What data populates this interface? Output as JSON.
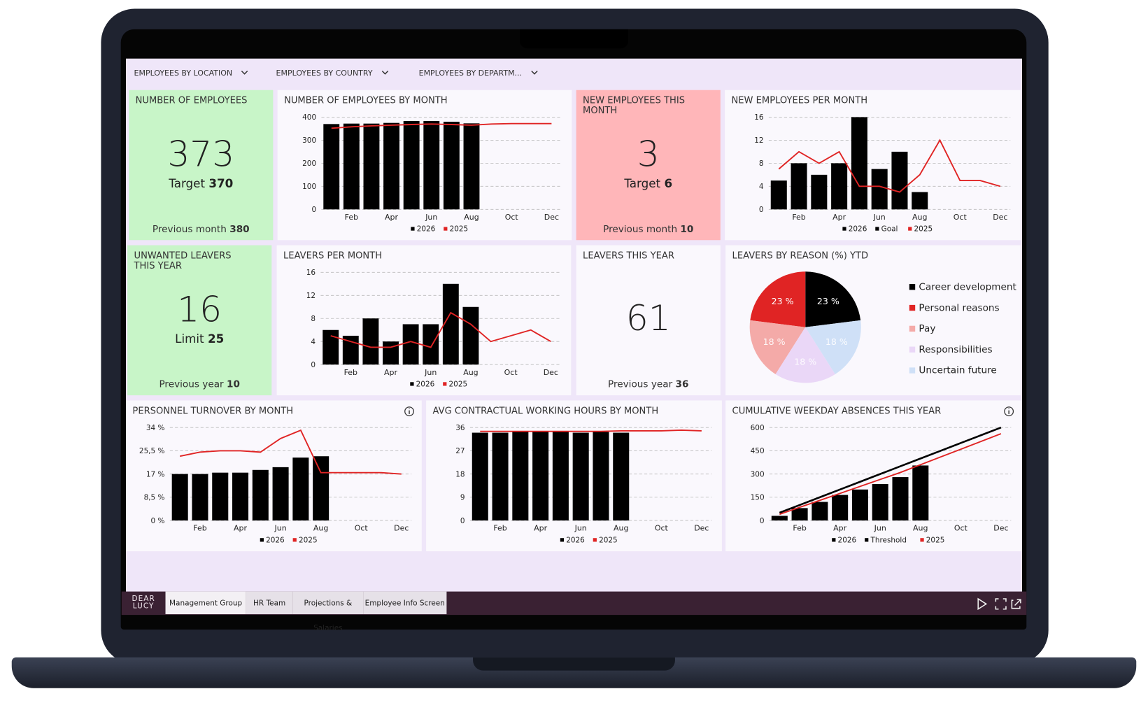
{
  "filters": [
    "EMPLOYEES BY LOCATION",
    "EMPLOYEES BY COUNTRY",
    "EMPLOYEES BY DEPARTM..."
  ],
  "tiles": [
    {
      "title": "NUMBER OF EMPLOYEES",
      "value": 373,
      "target_label": "Target",
      "target": 370,
      "footer_label": "Previous month",
      "footer": 380
    },
    {
      "title": "NEW EMPLOYEES THIS MONTH",
      "value": 3,
      "target_label": "Target",
      "target": 6,
      "footer_label": "Previous month",
      "footer": 10
    },
    {
      "title": "UNWANTED LEAVERS THIS YEAR",
      "value": 16,
      "target_label": "Limit",
      "target": 25,
      "footer_label": "Previous year",
      "footer": 10
    },
    {
      "title": "LEAVERS THIS YEAR",
      "value": 61,
      "footer_label": "Previous year",
      "footer": 36
    }
  ],
  "chart_data": [
    {
      "type": "bar",
      "title": "NUMBER OF EMPLOYEES BY MONTH",
      "categories": [
        null,
        "Feb",
        null,
        "Apr",
        null,
        "Jun",
        null,
        "Aug",
        null,
        "Oct",
        null,
        "Dec"
      ],
      "ylim": [
        0,
        400
      ],
      "yticks": [
        0,
        100,
        200,
        300,
        400
      ],
      "grid": true,
      "series": [
        {
          "name": "2026",
          "type": "bar",
          "color": "#000000",
          "values": [
            370,
            372,
            372,
            375,
            383,
            383,
            380,
            373,
            null,
            null,
            null,
            null
          ]
        },
        {
          "name": "2025",
          "type": "line",
          "color": "#e02424",
          "values": [
            352,
            358,
            362,
            365,
            368,
            370,
            368,
            365,
            370,
            372,
            372,
            372
          ]
        }
      ]
    },
    {
      "type": "bar",
      "title": "NEW EMPLOYEES PER MONTH",
      "categories": [
        null,
        "Feb",
        null,
        "Apr",
        null,
        "Jun",
        null,
        "Aug",
        null,
        "Oct",
        null,
        "Dec"
      ],
      "ylim": [
        0,
        16
      ],
      "yticks": [
        0,
        4,
        8,
        12,
        16
      ],
      "grid": true,
      "series": [
        {
          "name": "2026",
          "type": "bar",
          "color": "#000000",
          "values": [
            5,
            8,
            6,
            8,
            16,
            7,
            10,
            3,
            null,
            null,
            null,
            null
          ]
        },
        {
          "name": "Goal",
          "type": "line",
          "color": "#000000",
          "values": [
            null,
            null,
            null,
            null,
            null,
            null,
            null,
            null,
            null,
            null,
            null,
            null
          ]
        },
        {
          "name": "2025",
          "type": "line",
          "color": "#e02424",
          "values": [
            7,
            10,
            8,
            10,
            4,
            4,
            3,
            6,
            12,
            5,
            5,
            4
          ]
        }
      ]
    },
    {
      "type": "bar",
      "title": "LEAVERS PER MONTH",
      "categories": [
        null,
        "Feb",
        null,
        "Apr",
        null,
        "Jun",
        null,
        "Aug",
        null,
        "Oct",
        null,
        "Dec"
      ],
      "ylim": [
        0,
        16
      ],
      "yticks": [
        0,
        4,
        8,
        12,
        16
      ],
      "grid": true,
      "series": [
        {
          "name": "2026",
          "type": "bar",
          "color": "#000000",
          "values": [
            6,
            5,
            8,
            4,
            7,
            7,
            14,
            10,
            null,
            null,
            null,
            null
          ]
        },
        {
          "name": "2025",
          "type": "line",
          "color": "#e02424",
          "values": [
            5,
            4,
            3,
            3,
            4,
            3,
            9,
            7,
            4,
            5,
            6,
            4
          ]
        }
      ]
    },
    {
      "type": "pie",
      "title": "LEAVERS BY REASON (%) YTD",
      "categories": [
        "Career development",
        "Personal reasons",
        "Pay",
        "Responsibilities",
        "Uncertain future"
      ],
      "values": [
        23,
        23,
        18,
        18,
        18
      ],
      "value_labels": [
        "23 %",
        "23 %",
        "18 %",
        "18 %",
        "18 %"
      ],
      "colors": [
        "#000000",
        "#e02424",
        "#f4aaa8",
        "#ead7f7",
        "#cfe0f7"
      ]
    },
    {
      "type": "bar",
      "title": "PERSONNEL TURNOVER BY MONTH",
      "categories": [
        null,
        "Feb",
        null,
        "Apr",
        null,
        "Jun",
        null,
        "Aug",
        null,
        "Oct",
        null,
        "Dec"
      ],
      "ylim": [
        0,
        34
      ],
      "yticks": [
        {
          "value": 0,
          "label": "0 %"
        },
        {
          "value": 8.5,
          "label": "8,5 %"
        },
        {
          "value": 17,
          "label": "17 %"
        },
        {
          "value": 25.5,
          "label": "25,5 %"
        },
        {
          "value": 34,
          "label": "34 %"
        }
      ],
      "grid": true,
      "series": [
        {
          "name": "2026",
          "type": "bar",
          "color": "#000000",
          "values": [
            17,
            17,
            17.5,
            17.5,
            18.5,
            19.5,
            23,
            23.5,
            null,
            null,
            null,
            null
          ]
        },
        {
          "name": "2025",
          "type": "line",
          "color": "#e02424",
          "values": [
            23.5,
            25,
            25.5,
            25.5,
            25,
            30,
            33,
            17.5,
            17.5,
            17.5,
            17.5,
            17
          ]
        }
      ]
    },
    {
      "type": "bar",
      "title": "AVG CONTRACTUAL WORKING HOURS BY MONTH",
      "categories": [
        null,
        "Feb",
        null,
        "Apr",
        null,
        "Jun",
        null,
        "Aug",
        null,
        "Oct",
        null,
        "Dec"
      ],
      "ylim": [
        0,
        36
      ],
      "yticks": [
        0,
        9,
        18,
        27,
        36
      ],
      "grid": true,
      "series": [
        {
          "name": "2026",
          "type": "bar",
          "color": "#000000",
          "values": [
            34,
            34,
            34.3,
            34.3,
            34.3,
            34,
            34.3,
            34,
            null,
            null,
            null,
            null
          ]
        },
        {
          "name": "2025",
          "type": "line",
          "color": "#e02424",
          "values": [
            34.5,
            34.5,
            34.5,
            34.5,
            34.5,
            34.5,
            34.5,
            34.7,
            34.7,
            34.7,
            35,
            34.7
          ]
        }
      ]
    },
    {
      "type": "bar",
      "title": "CUMULATIVE WEEKDAY ABSENCES THIS YEAR",
      "categories": [
        null,
        "Feb",
        null,
        "Apr",
        null,
        "Jun",
        null,
        "Aug",
        null,
        "Oct",
        null,
        "Dec"
      ],
      "ylim": [
        0,
        600
      ],
      "yticks": [
        0,
        150,
        300,
        450,
        600
      ],
      "grid": true,
      "series": [
        {
          "name": "2026",
          "type": "bar",
          "color": "#000000",
          "values": [
            30,
            80,
            120,
            165,
            200,
            235,
            280,
            355,
            null,
            null,
            null,
            null
          ]
        },
        {
          "name": "Threshold",
          "type": "line",
          "color": "#000000",
          "values": [
            50,
            100,
            150,
            200,
            250,
            300,
            350,
            400,
            450,
            500,
            550,
            600
          ]
        },
        {
          "name": "2025",
          "type": "line",
          "color": "#e02424",
          "values": [
            40,
            85,
            130,
            175,
            220,
            265,
            310,
            360,
            410,
            460,
            510,
            560
          ]
        }
      ]
    }
  ],
  "brand": [
    "DEAR",
    "LUCY"
  ],
  "tabs": [
    "Management Group",
    "HR Team",
    "Projections & Salaries",
    "Employee Info Screen"
  ]
}
